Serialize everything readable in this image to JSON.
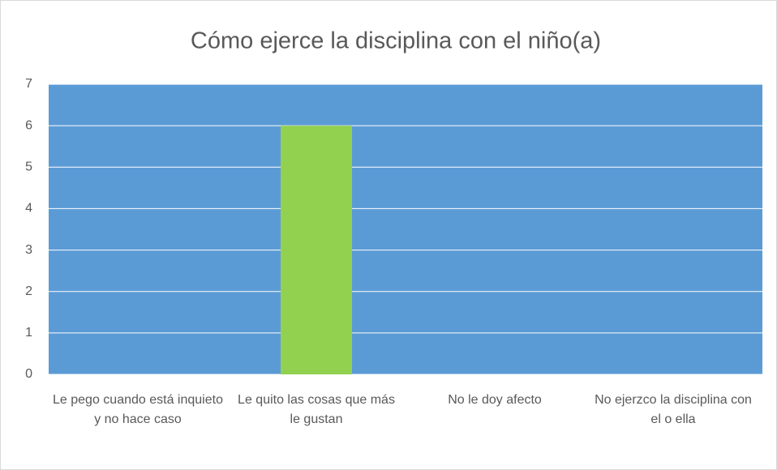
{
  "chart_data": {
    "type": "bar",
    "title": "Cómo ejerce la disciplina con el niño(a)",
    "categories": [
      "Le pego cuando está inquieto y no hace caso",
      "Le quito las cosas que más le gustan",
      "No le doy afecto",
      "No ejerzco la disciplina con el o ella"
    ],
    "values": [
      0,
      6,
      0,
      0
    ],
    "color": "#92d050",
    "plot_background": "#5b9bd5",
    "ylim": [
      0,
      7
    ],
    "yticks": [
      0,
      1,
      2,
      3,
      4,
      5,
      6,
      7
    ],
    "grid": true
  }
}
